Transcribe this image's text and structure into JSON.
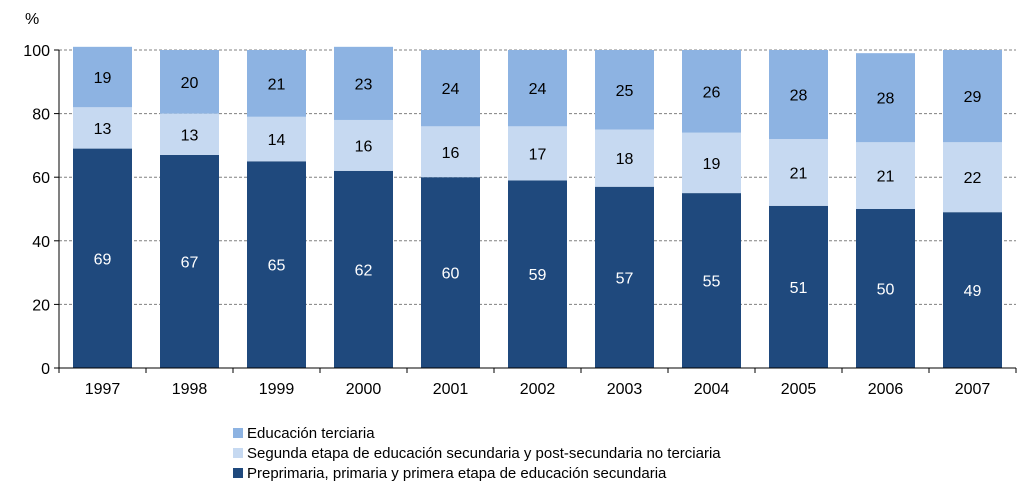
{
  "chart_data": {
    "type": "bar",
    "stacked": true,
    "ylabel": "%",
    "ylim": [
      0,
      100
    ],
    "yticks": [
      0,
      20,
      40,
      60,
      80,
      100
    ],
    "grid": true,
    "legend_position": "bottom",
    "categories": [
      "1997",
      "1998",
      "1999",
      "2000",
      "2001",
      "2002",
      "2003",
      "2004",
      "2005",
      "2006",
      "2007"
    ],
    "series": [
      {
        "name": "Preprimaria, primaria y primera etapa de educación secundaria",
        "color": "#1f497d",
        "label_color": "#ffffff",
        "values": [
          69,
          67,
          65,
          62,
          60,
          59,
          57,
          55,
          51,
          50,
          49
        ]
      },
      {
        "name": "Segunda etapa de educación secundaria y post-secundaria no terciaria",
        "color": "#c6d9f1",
        "label_color": "#000000",
        "values": [
          13,
          13,
          14,
          16,
          16,
          17,
          18,
          19,
          21,
          21,
          22
        ]
      },
      {
        "name": "Educación terciaria",
        "color": "#8db3e2",
        "label_color": "#000000",
        "values": [
          19,
          20,
          21,
          23,
          24,
          24,
          25,
          26,
          28,
          28,
          29
        ]
      }
    ]
  },
  "legend_order": [
    2,
    1,
    0
  ]
}
